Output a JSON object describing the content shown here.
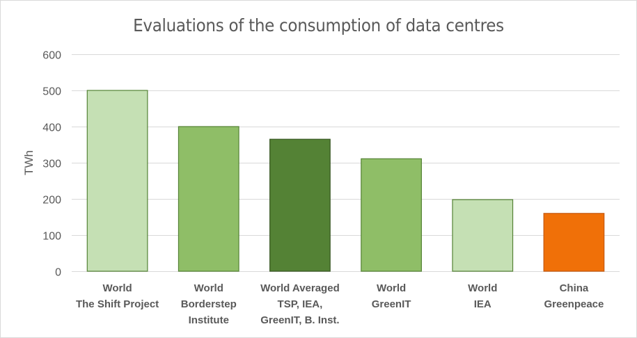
{
  "chart_data": {
    "type": "bar",
    "title": "Evaluations of the consumption of data centres",
    "xlabel": "",
    "ylabel": "TWh",
    "ylim": [
      0,
      600
    ],
    "yticks": [
      0,
      100,
      200,
      300,
      400,
      500,
      600
    ],
    "grid": true,
    "legend": "none",
    "categories": [
      [
        "World",
        "The Shift Project"
      ],
      [
        "World",
        "Borderstep",
        "Institute"
      ],
      [
        "World Averaged",
        "TSP, IEA,",
        "GreenIT, B. Inst."
      ],
      [
        "World",
        "GreenIT"
      ],
      [
        "World",
        "IEA"
      ],
      [
        "China",
        "Greenpeace"
      ]
    ],
    "values": [
      500,
      400,
      365,
      311,
      198,
      160
    ],
    "colors": [
      "#c5e0b4",
      "#8fbe67",
      "#548235",
      "#8fbe67",
      "#c5e0b4",
      "#f07008"
    ],
    "borders": [
      "#548235",
      "#548235",
      "#385723",
      "#548235",
      "#548235",
      "#c55a11"
    ]
  }
}
